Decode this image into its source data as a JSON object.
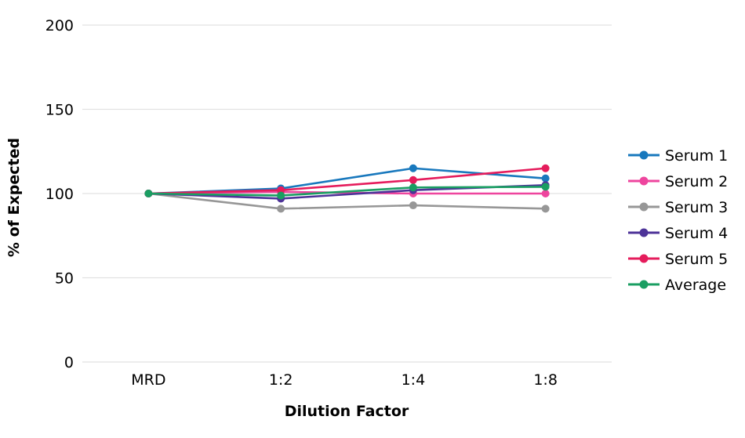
{
  "figure": {
    "background": "#ffffff",
    "text_color": "#000000",
    "grid_color": "#e2e2e2"
  },
  "chart_data": {
    "type": "line",
    "title": "",
    "xlabel": "Dilution Factor",
    "ylabel": "% of Expected",
    "categories": [
      "MRD",
      "1:2",
      "1:4",
      "1:8"
    ],
    "y_ticks": [
      0,
      50,
      100,
      150,
      200
    ],
    "ylim": [
      0,
      200
    ],
    "grid": "horizontal",
    "legend_position": "right",
    "series": [
      {
        "name": "Serum 1",
        "color": "#1878bd",
        "values": [
          100,
          103,
          115,
          109
        ]
      },
      {
        "name": "Serum 2",
        "color": "#ee459e",
        "values": [
          100,
          101,
          100,
          100
        ]
      },
      {
        "name": "Serum 3",
        "color": "#979797",
        "values": [
          100,
          91,
          93,
          91
        ]
      },
      {
        "name": "Serum 4",
        "color": "#4d3398",
        "values": [
          100,
          97,
          102,
          105
        ]
      },
      {
        "name": "Serum 5",
        "color": "#e51c5c",
        "values": [
          100,
          102,
          108,
          115
        ]
      },
      {
        "name": "Average",
        "color": "#1a9e62",
        "values": [
          100,
          98.8,
          103.6,
          104
        ]
      }
    ]
  }
}
